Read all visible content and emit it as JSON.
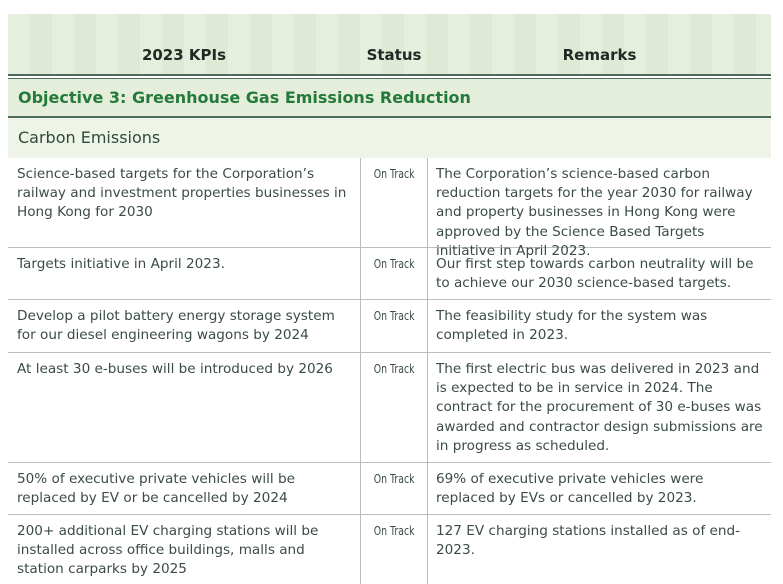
{
  "table": {
    "columns": [
      "2023 KPIs",
      "Status",
      "Remarks"
    ],
    "objective": "Objective 3: Greenhouse Gas Emissions Reduction",
    "section": "Carbon Emissions",
    "rows": [
      [
        "Science-based targets for the Corporation’s railway and investment properties businesses in Hong Kong for 2030",
        "On Track",
        "The Corporation’s science-based carbon reduction targets for the year 2030 for railway and property businesses in Hong Kong were approved by the Science Based Targets initiative in April 2023."
      ],
      [
        "Targets initiative in April 2023.",
        "On Track",
        "Our first step towards carbon neutrality will be to achieve our 2030 science-based targets."
      ],
      [
        "Develop a pilot battery energy storage system for our diesel engineering wagons by 2024",
        "On Track",
        "The feasibility study for the system  was completed in 2023."
      ],
      [
        "At least 30 e-buses will be introduced by 2026",
        "On Track",
        "The first electric bus was delivered in 2023 and is expected to be in service in 2024. The contract for the procurement of 30 e-buses was awarded and contractor design submissions are in progress as scheduled."
      ],
      [
        "50% of executive private vehicles will be replaced by EV or be cancelled by 2024",
        "On Track",
        "69% of executive private vehicles were replaced by EVs or cancelled by 2023."
      ],
      [
        "200+ additional EV charging stations will be installed across office buildings, malls and station carparks by 2025",
        "On Track",
        "127 EV charging stations installed as of end-2023."
      ]
    ]
  }
}
